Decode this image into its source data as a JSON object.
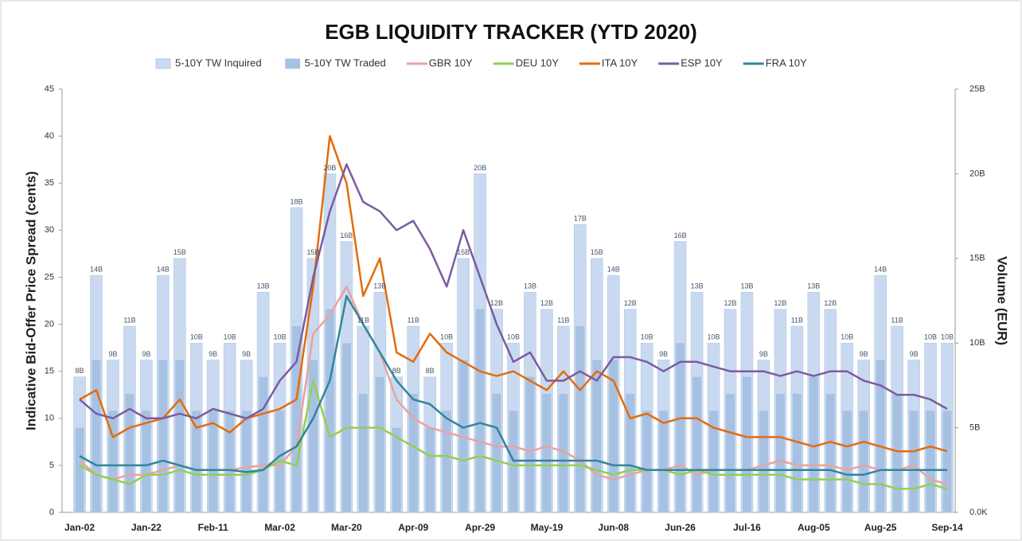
{
  "chart_data": {
    "type": "bar_line_combo",
    "title": "EGB LIQUIDITY TRACKER  (YTD 2020)",
    "y_label": "Indicative Bid-Offer Price Spread (cents)",
    "y2_label": "Volume (EUR)",
    "categories": [
      "Jan-02",
      null,
      null,
      null,
      "Jan-22",
      null,
      null,
      null,
      "Feb-11",
      null,
      null,
      null,
      "Mar-02",
      null,
      null,
      null,
      "Mar-20",
      null,
      null,
      null,
      "Apr-09",
      null,
      null,
      null,
      "Apr-29",
      null,
      null,
      null,
      "May-19",
      null,
      null,
      null,
      "Jun-08",
      null,
      null,
      null,
      "Jun-26",
      null,
      null,
      null,
      "Jul-16",
      null,
      null,
      null,
      "Aug-05",
      null,
      null,
      null,
      "Aug-25",
      null,
      null,
      null,
      "Sep-14"
    ],
    "ylim": [
      0,
      45
    ],
    "yticks": [
      0,
      5,
      10,
      15,
      20,
      25,
      30,
      35,
      40,
      45
    ],
    "y2lim": [
      0,
      25
    ],
    "y2ticks": [
      {
        "value": 0,
        "label": "0.0K"
      },
      {
        "value": 5,
        "label": "5B"
      },
      {
        "value": 10,
        "label": "10B"
      },
      {
        "value": 15,
        "label": "15B"
      },
      {
        "value": 20,
        "label": "20B"
      },
      {
        "value": 25,
        "label": "25B"
      }
    ],
    "series": [
      {
        "name": "5-10Y TW Inquired",
        "kind": "bar",
        "axis": "y2",
        "color": "#c9daf0",
        "values": [
          8,
          14,
          9,
          11,
          9,
          14,
          15,
          10,
          9,
          10,
          9,
          13,
          10,
          18,
          15,
          20,
          16,
          11,
          13,
          8,
          11,
          8,
          10,
          15,
          20,
          12,
          10,
          13,
          12,
          11,
          17,
          15,
          14,
          12,
          10,
          9,
          16,
          13,
          10,
          12,
          13,
          9,
          12,
          11,
          13,
          12,
          10,
          9,
          14,
          11,
          9,
          10,
          10
        ],
        "value_labels": [
          "8B",
          "14B",
          "9B",
          "11B",
          "9B",
          "14B",
          "15B",
          "10B",
          "9B",
          "10B",
          "9B",
          "13B",
          "10B",
          "18B",
          "15B",
          "20B",
          "16B",
          "11B",
          "13B",
          "8B",
          "11B",
          "8B",
          "10B",
          "15B",
          "20B",
          "12B",
          "10B",
          "13B",
          "12B",
          "11B",
          "17B",
          "15B",
          "14B",
          "12B",
          "10B",
          "9B",
          "16B",
          "13B",
          "10B",
          "12B",
          "13B",
          "9B",
          "12B",
          "11B",
          "13B",
          "12B",
          "10B",
          "9B",
          "14B",
          "11B",
          "9B",
          "10B",
          "10B"
        ]
      },
      {
        "name": "5-10Y TW Traded",
        "kind": "bar",
        "axis": "y2",
        "color": "#a7c1e3",
        "values": [
          5,
          9,
          6,
          7,
          6,
          9,
          9,
          6,
          6,
          6,
          6,
          8,
          6,
          11,
          9,
          12,
          10,
          7,
          8,
          5,
          7,
          5,
          6,
          9,
          12,
          7,
          6,
          8,
          7,
          7,
          11,
          9,
          9,
          7,
          6,
          6,
          10,
          8,
          6,
          7,
          8,
          6,
          7,
          7,
          8,
          7,
          6,
          6,
          9,
          7,
          6,
          6,
          6
        ]
      },
      {
        "name": "GBR 10Y",
        "kind": "line",
        "color": "#e8a3a0",
        "values": [
          5.5,
          4,
          3.5,
          4,
          4,
          4.5,
          5,
          4.5,
          4.5,
          4.5,
          4.8,
          5,
          5,
          7,
          19,
          21,
          24,
          20,
          17,
          12,
          10,
          9,
          8.5,
          8,
          7.5,
          7,
          7,
          6.5,
          7,
          6.5,
          5.5,
          4,
          3.5,
          4,
          4.5,
          4.5,
          5,
          4,
          4.5,
          4.5,
          4.5,
          5,
          5.5,
          5,
          5,
          5,
          4.5,
          5,
          4.5,
          4.5,
          5,
          3.5,
          3
        ]
      },
      {
        "name": "DEU 10Y",
        "kind": "line",
        "color": "#92d050",
        "values": [
          5,
          4,
          3.5,
          3,
          4,
          4,
          4.5,
          4,
          4,
          4,
          4,
          4.5,
          5.5,
          5,
          14,
          8,
          9,
          9,
          9,
          8,
          7,
          6,
          6,
          5.5,
          6,
          5.5,
          5,
          5,
          5,
          5,
          5,
          4.5,
          4,
          4.5,
          4.5,
          4.5,
          4,
          4.5,
          4,
          4,
          4,
          4,
          4,
          3.5,
          3.5,
          3.5,
          3.5,
          3,
          3,
          2.5,
          2.5,
          3,
          2.5
        ]
      },
      {
        "name": "ITA 10Y",
        "kind": "line",
        "color": "#e46c0a",
        "values": [
          12,
          13,
          8,
          9,
          9.5,
          10,
          12,
          9,
          9.5,
          8.5,
          10,
          10.5,
          11,
          12,
          24,
          40,
          35,
          23,
          27,
          17,
          16,
          19,
          17,
          16,
          15,
          14.5,
          15,
          14,
          13,
          15,
          13,
          15,
          14,
          10,
          10.5,
          9.5,
          10,
          10,
          9,
          8.5,
          8,
          8,
          8,
          7.5,
          7,
          7.5,
          7,
          7.5,
          7,
          6.5,
          6.5,
          7,
          6.5
        ]
      },
      {
        "name": "ESP 10Y",
        "kind": "line",
        "color": "#7b5ba1",
        "values": [
          12,
          10.5,
          10,
          11,
          10,
          10,
          10.5,
          10,
          11,
          10.5,
          10,
          11,
          14,
          16,
          25,
          32,
          37,
          33,
          32,
          30,
          31,
          28,
          24,
          30,
          25,
          20,
          16,
          17,
          14,
          14,
          15,
          14,
          16.5,
          16.5,
          16,
          15,
          16,
          16,
          15.5,
          15,
          15,
          15,
          14.5,
          15,
          14.5,
          15,
          15,
          14,
          13.5,
          12.5,
          12.5,
          12,
          11
        ]
      },
      {
        "name": "FRA 10Y",
        "kind": "line",
        "color": "#31859c",
        "values": [
          6,
          5,
          5,
          5,
          5,
          5.5,
          5,
          4.5,
          4.5,
          4.5,
          4.3,
          4.5,
          6,
          7,
          10,
          14,
          23,
          20,
          17,
          14,
          12,
          11.5,
          10,
          9,
          9.5,
          9,
          5.5,
          5.5,
          5.5,
          5.5,
          5.5,
          5.5,
          5,
          5,
          4.5,
          4.5,
          4.5,
          4.5,
          4.5,
          4.5,
          4.5,
          4.5,
          4.5,
          4.5,
          4.5,
          4.5,
          4,
          4,
          4.5,
          4.5,
          4.5,
          4.5,
          4.5
        ]
      }
    ]
  }
}
